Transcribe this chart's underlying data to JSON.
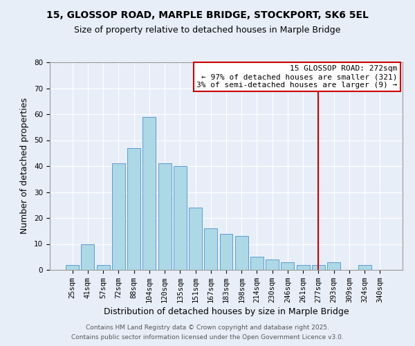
{
  "title_line1": "15, GLOSSOP ROAD, MARPLE BRIDGE, STOCKPORT, SK6 5EL",
  "title_line2": "Size of property relative to detached houses in Marple Bridge",
  "bar_labels": [
    "25sqm",
    "41sqm",
    "57sqm",
    "72sqm",
    "88sqm",
    "104sqm",
    "120sqm",
    "135sqm",
    "151sqm",
    "167sqm",
    "183sqm",
    "198sqm",
    "214sqm",
    "230sqm",
    "246sqm",
    "261sqm",
    "277sqm",
    "293sqm",
    "309sqm",
    "324sqm",
    "340sqm"
  ],
  "bar_heights": [
    2,
    10,
    2,
    41,
    47,
    59,
    41,
    40,
    24,
    16,
    14,
    13,
    5,
    4,
    3,
    2,
    2,
    3,
    0,
    2,
    0
  ],
  "bar_color": "#add8e6",
  "bar_edge_color": "#5b9bd5",
  "xlabel": "Distribution of detached houses by size in Marple Bridge",
  "ylabel": "Number of detached properties",
  "ylim": [
    0,
    80
  ],
  "yticks": [
    0,
    10,
    20,
    30,
    40,
    50,
    60,
    70,
    80
  ],
  "vline_x_index": 16,
  "vline_color": "#cc0000",
  "annotation_title": "15 GLOSSOP ROAD: 272sqm",
  "annotation_line1": "← 97% of detached houses are smaller (321)",
  "annotation_line2": "3% of semi-detached houses are larger (9) →",
  "footer_line1": "Contains HM Land Registry data © Crown copyright and database right 2025.",
  "footer_line2": "Contains public sector information licensed under the Open Government Licence v3.0.",
  "background_color": "#e8eef8",
  "grid_color": "#ffffff",
  "title_fontsize": 10,
  "subtitle_fontsize": 9,
  "axis_label_fontsize": 9,
  "tick_fontsize": 7.5,
  "annotation_fontsize": 8,
  "footer_fontsize": 6.5
}
